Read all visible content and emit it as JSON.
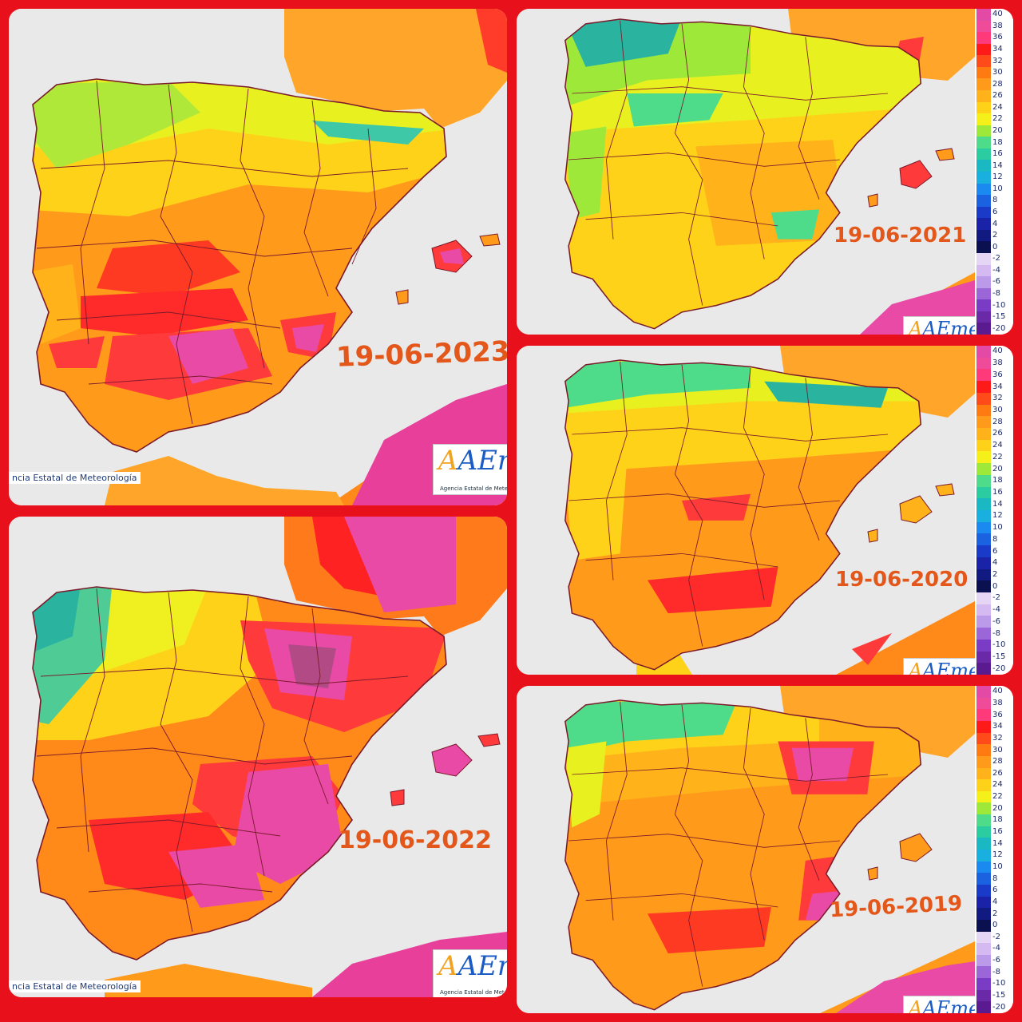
{
  "panels": [
    {
      "date": "19-06-2023",
      "agency_text": "ncia Estatal de Meteorología",
      "logo": "AEmet",
      "logo_sub": "Agencia Estatal de Meteorología"
    },
    {
      "date": "19-06-2022",
      "agency_text": "ncia Estatal de Meteorología",
      "logo": "AEmet",
      "logo_sub": "Agencia Estatal de Meteorología"
    },
    {
      "date": "19-06-2021",
      "logo": "AEmet"
    },
    {
      "date": "19-06-2020",
      "logo": "AEmet"
    },
    {
      "date": "19-06-2019",
      "logo": "AEmet"
    }
  ],
  "legend": {
    "labels": [
      "40",
      "38",
      "36",
      "34",
      "32",
      "30",
      "28",
      "26",
      "24",
      "22",
      "20",
      "18",
      "16",
      "14",
      "12",
      "10",
      "8",
      "6",
      "4",
      "2",
      "0",
      "-2",
      "-4",
      "-6",
      "-8",
      "-10",
      "-15",
      "-20"
    ],
    "colors": [
      "#e34aa6",
      "#f04a9a",
      "#ff3a7a",
      "#ff1a1a",
      "#ff4a1a",
      "#ff7a10",
      "#ff9a1a",
      "#ffb21a",
      "#ffd21a",
      "#f5f01a",
      "#9ee83a",
      "#4fdc8a",
      "#2acca0",
      "#1ab8c2",
      "#19b0e0",
      "#1a8af0",
      "#1a62e0",
      "#1a3ac8",
      "#1a22a8",
      "#101a80",
      "#0a1050",
      "#e6d6f5",
      "#d4baf0",
      "#bc9aea",
      "#9a66d8",
      "#7a3cc4",
      "#6a2aa8",
      "#5a1a90"
    ],
    "colors_desc": "40 to -20 color ramp"
  },
  "colors": {
    "sea": "#e9e9e9",
    "frame": "#e8101a",
    "date_text": "#e4571a",
    "border_lines": "#7a1a2a"
  }
}
